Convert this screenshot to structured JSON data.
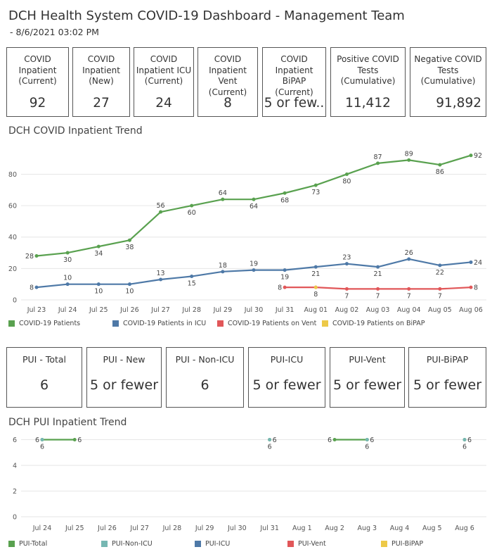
{
  "header": {
    "title": "DCH Health System COVID-19 Dashboard - Management Team",
    "subtitle": "- 8/6/2021 03:02 PM"
  },
  "kpis_top": [
    {
      "label": "COVID Inpatient (Current)",
      "value": "92"
    },
    {
      "label": "COVID Inpatient (New)",
      "value": "27"
    },
    {
      "label": "COVID Inpatient ICU (Current)",
      "value": "24"
    },
    {
      "label": "COVID Inpatient Vent (Current)",
      "value": "8"
    },
    {
      "label": "COVID Inpatient BiPAP (Current)",
      "value": "5 or few.."
    },
    {
      "label": "Positive COVID Tests (Cumulative)",
      "value": "11,412"
    },
    {
      "label": "Negative COVID Tests (Cumulative)",
      "value": "91,892"
    }
  ],
  "kpis_pui": [
    {
      "label": "PUI - Total",
      "value": "6"
    },
    {
      "label": "PUI - New",
      "value": "5 or fewer"
    },
    {
      "label": "PUI - Non-ICU",
      "value": "6"
    },
    {
      "label": "PUI-ICU",
      "value": "5 or fewer"
    },
    {
      "label": "PUI-Vent",
      "value": "5 or fewer"
    },
    {
      "label": "PUI-BiPAP",
      "value": "5 or fewer"
    }
  ],
  "chart_data": [
    {
      "type": "line",
      "title": "DCH COVID Inpatient Trend",
      "x": [
        "Jul 23",
        "Jul 24",
        "Jul 25",
        "Jul 26",
        "Jul 27",
        "Jul 28",
        "Jul 29",
        "Jul 30",
        "Jul 31",
        "Aug 01",
        "Aug 02",
        "Aug 03",
        "Aug 04",
        "Aug 05",
        "Aug 06"
      ],
      "ylim": [
        0,
        95
      ],
      "yticks": [
        0,
        20,
        40,
        60,
        80
      ],
      "grid": true,
      "legend": "bottom",
      "series": [
        {
          "name": "COVID-19 Patients",
          "color": "#59a14f",
          "values": [
            28,
            30,
            34,
            38,
            56,
            60,
            64,
            64,
            68,
            73,
            80,
            87,
            89,
            86,
            92
          ],
          "label_pos": [
            "left",
            "below",
            "below",
            "below",
            "above",
            "below",
            "above",
            "below",
            "below",
            "below",
            "below",
            "above",
            "above",
            "below",
            "right"
          ]
        },
        {
          "name": "COVID-19 Patients in ICU",
          "color": "#4e79a7",
          "values": [
            8,
            10,
            10,
            10,
            13,
            15,
            18,
            19,
            19,
            21,
            23,
            21,
            26,
            22,
            24
          ],
          "label_pos": [
            "left",
            "above",
            "below",
            "below",
            "above",
            "below",
            "above",
            "above",
            "below",
            "below",
            "above",
            "below",
            "above",
            "below",
            "right"
          ]
        },
        {
          "name": "COVID-19 Patients on Vent",
          "color": "#e15759",
          "values": [
            null,
            null,
            null,
            null,
            null,
            null,
            null,
            null,
            8,
            8,
            7,
            7,
            7,
            7,
            8
          ],
          "label_pos": [
            "",
            "",
            "",
            "",
            "",
            "",
            "",
            "",
            "left",
            "below",
            "below",
            "below",
            "below",
            "below",
            "right"
          ]
        },
        {
          "name": "COVID-19 Patients on BiPAP",
          "color": "#edc948",
          "values": [
            null,
            null,
            null,
            null,
            null,
            null,
            null,
            null,
            null,
            8,
            null,
            null,
            null,
            null,
            null
          ],
          "label_pos": [
            "",
            "",
            "",
            "",
            "",
            "",
            "",
            "",
            "",
            "none",
            "",
            "",
            "",
            "",
            ""
          ]
        }
      ]
    },
    {
      "type": "line",
      "title": "DCH PUI Inpatient Trend",
      "x": [
        "Jul 24",
        "Jul 25",
        "Jul 26",
        "Jul 27",
        "Jul 28",
        "Jul 29",
        "Jul 30",
        "Jul 31",
        "Aug 1",
        "Aug 2",
        "Aug 3",
        "Aug 4",
        "Aug 5",
        "Aug 6"
      ],
      "ylim": [
        0,
        6.3
      ],
      "yticks": [
        0,
        2,
        4,
        6
      ],
      "grid": true,
      "legend": "bottom",
      "series": [
        {
          "name": "PUI-Total",
          "color": "#59a14f",
          "values": [
            6,
            6,
            null,
            null,
            null,
            null,
            null,
            6,
            null,
            6,
            6,
            null,
            null,
            6
          ],
          "label_pos": [
            "left",
            "right",
            "",
            "",
            "",
            "",
            "",
            "right",
            "",
            "left",
            "right",
            "",
            "",
            "right"
          ]
        },
        {
          "name": "PUI-Non-ICU",
          "color": "#76b7b2",
          "values": [
            6,
            null,
            null,
            null,
            null,
            null,
            null,
            6,
            null,
            null,
            6,
            null,
            null,
            6
          ],
          "label_pos": [
            "below",
            "",
            "",
            "",
            "",
            "",
            "",
            "below",
            "",
            "",
            "below",
            "",
            "",
            "below"
          ]
        },
        {
          "name": "PUI-ICU",
          "color": "#4e79a7",
          "values": [
            null,
            null,
            null,
            null,
            null,
            null,
            null,
            null,
            null,
            null,
            null,
            null,
            null,
            null
          ],
          "label_pos": []
        },
        {
          "name": "PUI-Vent",
          "color": "#e15759",
          "values": [
            null,
            null,
            null,
            null,
            null,
            null,
            null,
            null,
            null,
            null,
            null,
            null,
            null,
            null
          ],
          "label_pos": []
        },
        {
          "name": "PUI-BiPAP",
          "color": "#edc948",
          "values": [
            null,
            null,
            null,
            null,
            null,
            null,
            null,
            null,
            null,
            null,
            null,
            null,
            null,
            null
          ],
          "label_pos": []
        }
      ]
    }
  ]
}
